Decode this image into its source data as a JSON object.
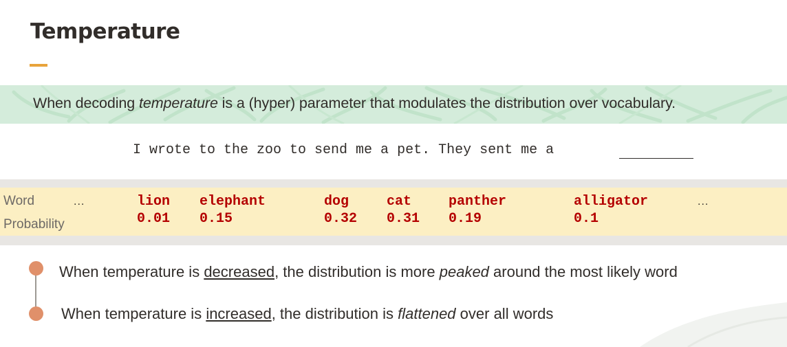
{
  "slide": {
    "title": "Temperature"
  },
  "banner": {
    "before": "When decoding ",
    "emph": "temperature",
    "after": " is a (hyper) parameter that modulates the distribution over vocabulary."
  },
  "prompt": {
    "sentence": "I wrote to the zoo to send me a pet. They sent me a"
  },
  "table": {
    "word_label": "Word",
    "prob_label": "Probability",
    "ellipsis_left": "...",
    "ellipsis_right": "...",
    "entries": [
      {
        "word": "lion",
        "probability": "0.01"
      },
      {
        "word": "elephant",
        "probability": "0.15"
      },
      {
        "word": "dog",
        "probability": "0.32"
      },
      {
        "word": "cat",
        "probability": "0.31"
      },
      {
        "word": "panther",
        "probability": "0.19"
      },
      {
        "word": "alligator",
        "probability": "0.1"
      }
    ]
  },
  "bullets": [
    {
      "before": "When temperature is ",
      "underlined": "decreased",
      "middle": ", the distribution is more ",
      "emph": "peaked",
      "after": " around the most likely word"
    },
    {
      "before": "When temperature is ",
      "underlined": "increased",
      "middle": ", the distribution is ",
      "emph": "flattened",
      "after": " over all words"
    }
  ],
  "colors": {
    "accent": "#e8a33b",
    "banner_bg": "#d4ecdb",
    "table_bg": "#fcefc3",
    "word_text": "#b40000",
    "bullet_dot": "#e0906a"
  }
}
